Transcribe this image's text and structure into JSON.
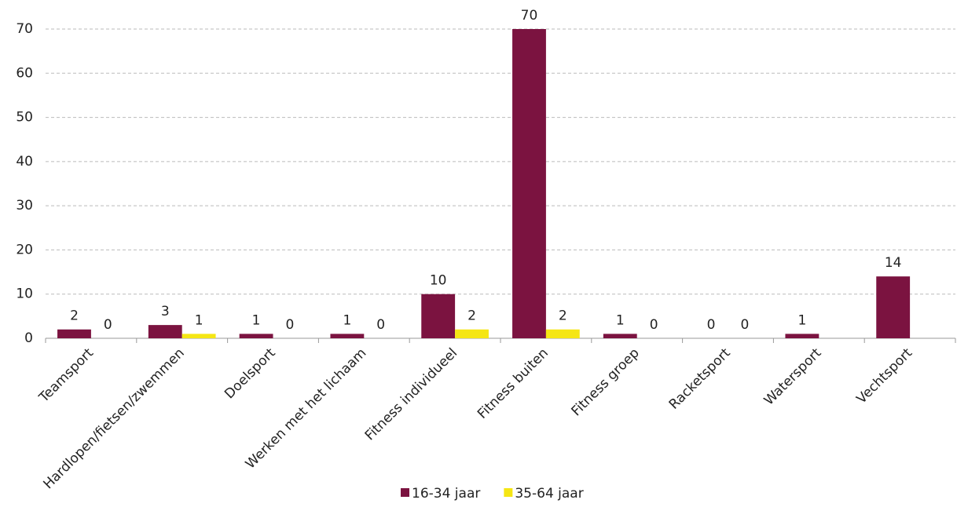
{
  "chart_data": {
    "type": "bar",
    "categories": [
      "Teamsport",
      "Hardlopen/fietsen/zwemmen",
      "Doelsport",
      "Werken met het lichaam",
      "Fitness individueel",
      "Fitness buiten",
      "Fitness groep",
      "Racketsport",
      "Watersport",
      "Vechtsport"
    ],
    "series": [
      {
        "name": "16-34 jaar",
        "color": "#7b1340",
        "values": [
          2,
          3,
          1,
          1,
          10,
          70,
          1,
          0,
          1,
          14
        ]
      },
      {
        "name": "35-64 jaar",
        "color": "#f5e614",
        "values": [
          0,
          1,
          0,
          0,
          2,
          2,
          0,
          0,
          null,
          null
        ]
      }
    ],
    "ylim": [
      0,
      70
    ],
    "yticks": [
      0,
      10,
      20,
      30,
      40,
      50,
      60,
      70
    ],
    "grid": true,
    "legend": "bottom"
  }
}
